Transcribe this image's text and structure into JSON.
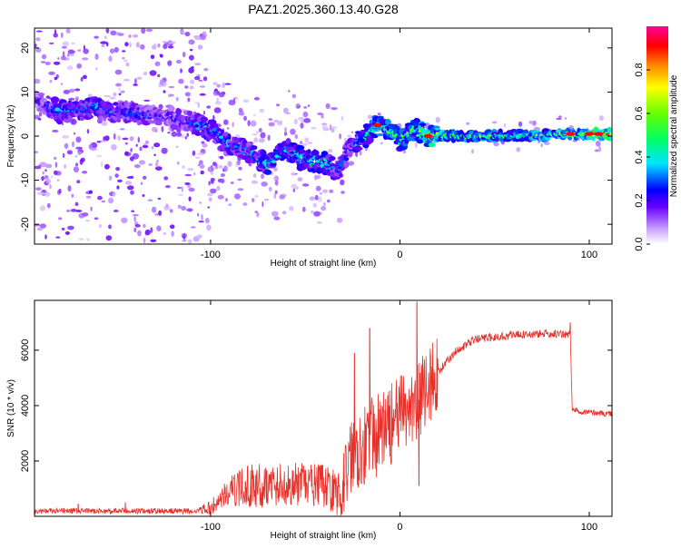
{
  "title": "PAZ1.2025.360.13.40.G28",
  "chart_data": [
    {
      "type": "heatmap",
      "xlabel": "Height of straight line (km)",
      "ylabel": "Frequency (Hz)",
      "xlim": [
        -193,
        112
      ],
      "ylim": [
        -24.5,
        24.5
      ],
      "x_ticks": [
        -100,
        0,
        100
      ],
      "x_tick_labels": [
        "-100",
        "0",
        "100"
      ],
      "y_ticks": [
        -20,
        -10,
        0,
        10,
        20
      ],
      "y_tick_labels": [
        "-20",
        "-10",
        "0",
        "10",
        "20"
      ],
      "colorbar": {
        "label": "Normalized spectral amplitude",
        "range": [
          0,
          1
        ],
        "ticks": [
          0.0,
          0.2,
          0.4,
          0.6,
          0.8
        ],
        "tick_labels": [
          "0.0",
          "0.2",
          "0.4",
          "0.6",
          "0.8"
        ]
      },
      "ridge_points": [
        {
          "x": -190,
          "f": 8,
          "amp": 0.2
        },
        {
          "x": -180,
          "f": 5.5,
          "amp": 0.4
        },
        {
          "x": -170,
          "f": 6,
          "amp": 0.35
        },
        {
          "x": -160,
          "f": 6.5,
          "amp": 0.4
        },
        {
          "x": -155,
          "f": 5.5,
          "amp": 0.35
        },
        {
          "x": -120,
          "f": 4.5,
          "amp": 0.25
        },
        {
          "x": -110,
          "f": 3,
          "amp": 0.35
        },
        {
          "x": -100,
          "f": 1.5,
          "amp": 0.4
        },
        {
          "x": -90,
          "f": -2,
          "amp": 0.4
        },
        {
          "x": -80,
          "f": -3.5,
          "amp": 0.35
        },
        {
          "x": -70,
          "f": -6.5,
          "amp": 0.45
        },
        {
          "x": -60,
          "f": -3,
          "amp": 0.4
        },
        {
          "x": -50,
          "f": -5.5,
          "amp": 0.45
        },
        {
          "x": -40,
          "f": -6,
          "amp": 0.45
        },
        {
          "x": -33,
          "f": -8,
          "amp": 0.35
        },
        {
          "x": -25,
          "f": -2,
          "amp": 0.35
        },
        {
          "x": -18,
          "f": 0,
          "amp": 0.5
        },
        {
          "x": -12,
          "f": 2.5,
          "amp": 0.6
        },
        {
          "x": -5,
          "f": 1,
          "amp": 0.6
        },
        {
          "x": 0,
          "f": -1,
          "amp": 0.55
        },
        {
          "x": 8,
          "f": 1.5,
          "amp": 0.6
        },
        {
          "x": 15,
          "f": 0,
          "amp": 0.8
        },
        {
          "x": 30,
          "f": 0,
          "amp": 0.65
        },
        {
          "x": 60,
          "f": 0,
          "amp": 0.6
        },
        {
          "x": 90,
          "f": 0.5,
          "amp": 0.75
        },
        {
          "x": 105,
          "f": 0.5,
          "amp": 0.95
        }
      ]
    },
    {
      "type": "line",
      "xlabel": "Height of straight line (km)",
      "ylabel": "SNR (10 * v/v)",
      "xlim": [
        -193,
        112
      ],
      "ylim": [
        0,
        7800
      ],
      "x_ticks": [
        -100,
        0,
        100
      ],
      "x_tick_labels": [
        "-100",
        "0",
        "100"
      ],
      "y_ticks": [
        2000,
        4000,
        6000
      ],
      "y_tick_labels": [
        "2000",
        "4000",
        "6000"
      ],
      "color": "#e8302a",
      "trend": [
        {
          "x": -193,
          "y": 150
        },
        {
          "x": -110,
          "y": 150
        },
        {
          "x": -100,
          "y": 300
        },
        {
          "x": -90,
          "y": 900
        },
        {
          "x": -80,
          "y": 1100
        },
        {
          "x": -60,
          "y": 1150
        },
        {
          "x": -40,
          "y": 1100
        },
        {
          "x": -30,
          "y": 700
        },
        {
          "x": -27,
          "y": 2200
        },
        {
          "x": -20,
          "y": 2600
        },
        {
          "x": -10,
          "y": 3000
        },
        {
          "x": 0,
          "y": 3600
        },
        {
          "x": 10,
          "y": 4200
        },
        {
          "x": 20,
          "y": 5200
        },
        {
          "x": 30,
          "y": 6000
        },
        {
          "x": 40,
          "y": 6400
        },
        {
          "x": 60,
          "y": 6550
        },
        {
          "x": 80,
          "y": 6600
        },
        {
          "x": 90,
          "y": 6550
        },
        {
          "x": 91,
          "y": 3850
        },
        {
          "x": 100,
          "y": 3750
        },
        {
          "x": 112,
          "y": 3700
        }
      ],
      "spikes": [
        {
          "x": -170,
          "y": 450
        },
        {
          "x": -145,
          "y": 500
        },
        {
          "x": -24,
          "y": 5900
        },
        {
          "x": -16,
          "y": 6800
        },
        {
          "x": 9,
          "y": 7750
        },
        {
          "x": 10,
          "y": 1100
        },
        {
          "x": 90,
          "y": 7000
        }
      ]
    }
  ]
}
